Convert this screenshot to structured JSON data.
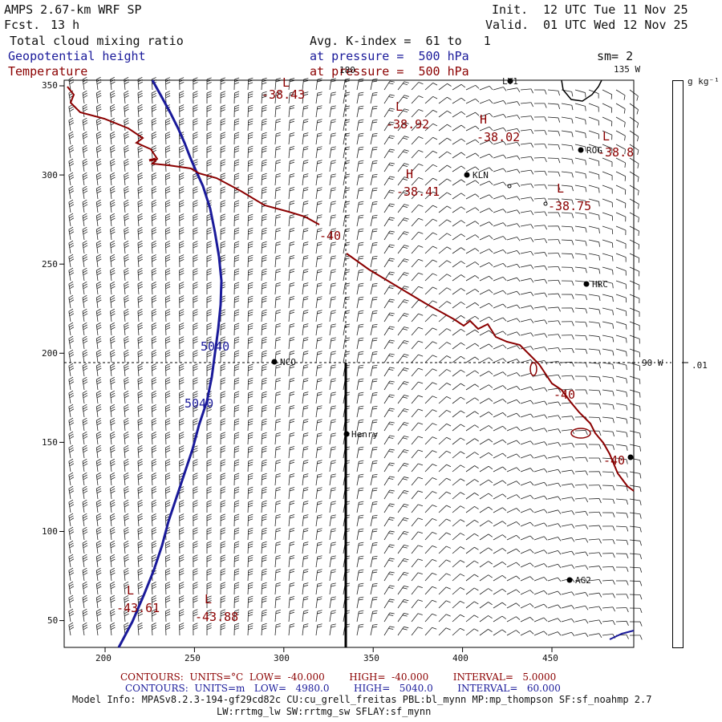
{
  "header": {
    "model": "AMPS 2.67-km WRF SP",
    "fcst_label": "Fcst.",
    "fcst_value": "13 h",
    "init_label": "Init.",
    "init_value": "12 UTC Tue 11 Nov 25",
    "valid_label": "Valid.",
    "valid_value": "01 UTC Wed 12 Nov 25"
  },
  "fields": {
    "shaded": "Total cloud mixing ratio",
    "contour1": "Geopotential height",
    "contour2": "Temperature",
    "avg_line": "Avg. K-index =  61 to   1",
    "pressure1": "at pressure =  500 hPa",
    "pressure2": "at pressure =  500 hPa",
    "smoothing": "sm= 2"
  },
  "colorbar": {
    "units": "g kg⁻¹",
    "tick_value": ".01"
  },
  "meridians": {
    "m180": "180",
    "m135": "135 W",
    "m90": "90 W"
  },
  "axes": {
    "x_ticks": [
      "200",
      "250",
      "300",
      "350",
      "400",
      "450"
    ],
    "y_ticks": [
      "350",
      "300",
      "250",
      "200",
      "150",
      "100",
      "50"
    ]
  },
  "stations": [
    {
      "name": "LV1"
    },
    {
      "name": "ROG"
    },
    {
      "name": "KLN"
    },
    {
      "name": "HRC"
    },
    {
      "name": "NCO"
    },
    {
      "name": "Henry"
    },
    {
      "name": "AG2"
    },
    {
      "name": ""
    }
  ],
  "temp_labels": {
    "l1": "L",
    "v1": "-38.43",
    "l2": "L",
    "v2": "-38.92",
    "l3": "H",
    "v3": "-38.02",
    "l4": "L",
    "v4": "-38.8",
    "l5": "H",
    "v5": "-38.41",
    "l6": "L",
    "v6": "-38.75",
    "c1": "-40",
    "c2": "-40",
    "c3": "-40",
    "l7": "L",
    "v7": "-43.61",
    "l8": "L",
    "v8": "-43.88"
  },
  "height_labels": {
    "h1": "5040",
    "h2": "5040"
  },
  "footer": {
    "temp_contours": "CONTOURS:  UNITS=°C  LOW=  -40.000        HIGH=  -40.000        INTERVAL=   5.0000",
    "hgt_contours": "CONTOURS:  UNITS=m   LOW=   4980.0        HIGH=   5040.0        INTERVAL=   60.000",
    "model_info": "Model Info: MPASv8.2.3-194-gf29cd82c CU:cu_grell_freitas PBL:bl_mynn MP:mp_thompson SF:sf_noahmp 2.7",
    "model_info2": "LW:rrtmg_lw SW:rrtmg_sw SFLAY:sf_mynn"
  },
  "colors": {
    "temperature": "#8b0000",
    "height": "#1a1a9a",
    "text": "#111111"
  }
}
